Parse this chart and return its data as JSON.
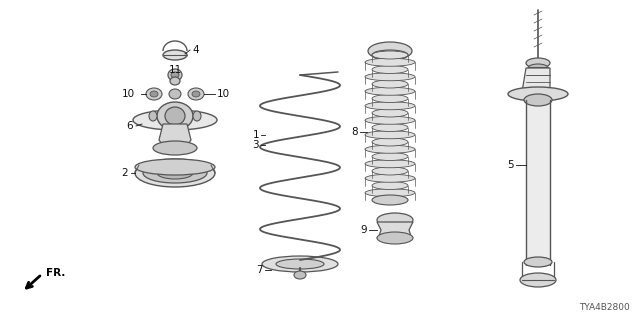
{
  "diagram_id": "TYA4B2800",
  "bg_color": "#ffffff",
  "line_color": "#555555",
  "fig_width": 6.4,
  "fig_height": 3.2,
  "dpi": 100
}
